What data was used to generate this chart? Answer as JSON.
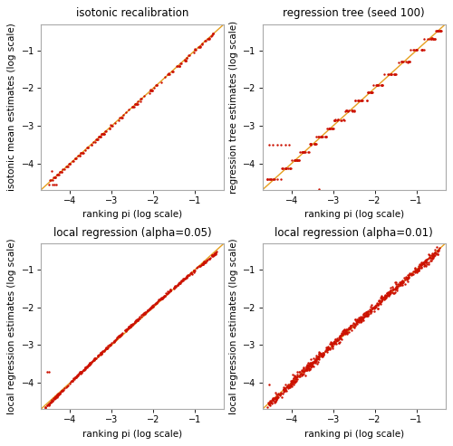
{
  "titles": [
    "isotonic recalibration",
    "regression tree (seed 100)",
    "local regression (alpha=0.05)",
    "local regression (alpha=0.01)"
  ],
  "xlabels": [
    "ranking pi (log scale)",
    "ranking pi (log scale)",
    "ranking pi (log scale)",
    "ranking pi (log scale)"
  ],
  "ylabels": [
    "isotonic mean estimates (log scale)",
    "regression tree estimates (log scale)",
    "local regression estimates (log scale)",
    "local regression estimates (log scale)"
  ],
  "xlim": [
    -4.7,
    -0.3
  ],
  "ylim": [
    -4.7,
    -0.3
  ],
  "diagonal_color": "#E6A020",
  "point_color": "#CC1100",
  "point_size": 3,
  "bg_color": "#FFFFFF",
  "plot_bg_color": "#FFFFFF",
  "spine_color": "#AAAAAA",
  "title_fontsize": 8.5,
  "label_fontsize": 7.5,
  "tick_fontsize": 7,
  "xticks": [
    -4,
    -3,
    -2,
    -1
  ],
  "yticks": [
    -4,
    -3,
    -2,
    -1
  ],
  "figsize": [
    5.0,
    4.93
  ],
  "dpi": 100
}
